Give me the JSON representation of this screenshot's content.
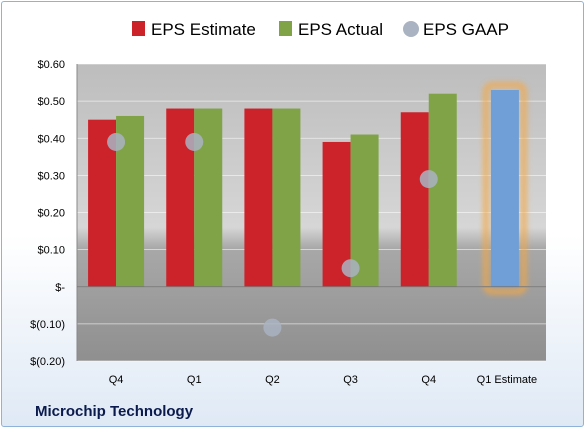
{
  "company": "Microchip Technology",
  "colors": {
    "estimate": "#cc2229",
    "actual": "#7fa346",
    "gaap": "#aab3c2",
    "forecast": "#6f9fd6",
    "forecast_glow": "#f5a742"
  },
  "chart_data": {
    "type": "bar",
    "categories": [
      "Q4",
      "Q1",
      "Q2",
      "Q3",
      "Q4",
      "Q1 Estimate"
    ],
    "series": [
      {
        "name": "EPS Estimate",
        "values": [
          0.45,
          0.48,
          0.48,
          0.39,
          0.47,
          0.53
        ]
      },
      {
        "name": "EPS Actual",
        "values": [
          0.46,
          0.48,
          0.48,
          0.41,
          0.52,
          null
        ]
      },
      {
        "name": "EPS GAAP",
        "values": [
          0.39,
          0.39,
          -0.11,
          0.05,
          0.29,
          null
        ]
      }
    ],
    "ylim": [
      -0.2,
      0.6
    ],
    "yticks": [
      0.6,
      0.5,
      0.4,
      0.3,
      0.2,
      0.1,
      0,
      -0.1,
      -0.2
    ],
    "ytick_labels": [
      "$0.60",
      "$0.50",
      "$0.40",
      "$0.30",
      "$0.20",
      "$0.10",
      "$-",
      "$(0.10)",
      "$(0.20)"
    ],
    "legend": [
      "EPS Estimate",
      "EPS Actual",
      "EPS GAAP"
    ],
    "legend_position": "top",
    "grid": true
  }
}
